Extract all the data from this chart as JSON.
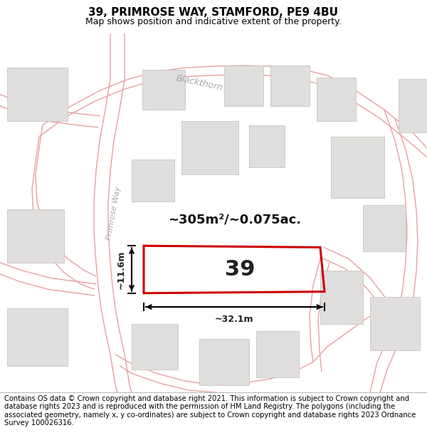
{
  "title": "39, PRIMROSE WAY, STAMFORD, PE9 4BU",
  "subtitle": "Map shows position and indicative extent of the property.",
  "footer": "Contains OS data © Crown copyright and database right 2021. This information is subject to Crown copyright and database rights 2023 and is reproduced with the permission of HM Land Registry. The polygons (including the associated geometry, namely x, y co-ordinates) are subject to Crown copyright and database rights 2023 Ordnance Survey 100026316.",
  "area_text": "~305m²/~0.075ac.",
  "property_number": "39",
  "dim_width": "~32.1m",
  "dim_height": "~11.6m",
  "road_label_blackthorn": "Blackthorn",
  "road_label_primrose": "Primrose Way",
  "map_bg": "#f7f6f4",
  "plot_color": "#cc0000",
  "road_color": "#e8a0a0",
  "building_color": "#e0dedd",
  "building_edge": "#c8c5c2",
  "title_fontsize": 11,
  "subtitle_fontsize": 9,
  "footer_fontsize": 7.2
}
